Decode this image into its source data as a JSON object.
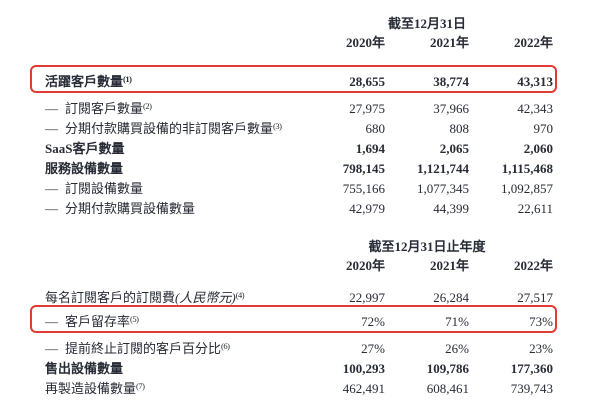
{
  "page": {
    "background": "#ffffff",
    "text_color": "#272b35",
    "highlight_color": "#e23b31"
  },
  "table1": {
    "period_header": "截至12月31日",
    "years": [
      "2020年",
      "2021年",
      "2022年"
    ],
    "rows": [
      {
        "prefix": "",
        "label": "活躍客戶數量",
        "sup": "(1)",
        "values": [
          "28,655",
          "38,774",
          "43,313"
        ]
      },
      {
        "prefix": "—",
        "label": "訂閱客戶數量",
        "sup": "(2)",
        "values": [
          "27,975",
          "37,966",
          "42,343"
        ]
      },
      {
        "prefix": "—",
        "label": "分期付款購買設備的非訂閱客戶數量",
        "sup": "(3)",
        "values": [
          "680",
          "808",
          "970"
        ]
      },
      {
        "prefix": "",
        "label": "SaaS客戶數量",
        "sup": "",
        "values": [
          "1,694",
          "2,065",
          "2,060"
        ]
      },
      {
        "prefix": "",
        "label": "服務設備數量",
        "sup": "",
        "values": [
          "798,145",
          "1,121,744",
          "1,115,468"
        ]
      },
      {
        "prefix": "—",
        "label": "訂閱設備數量",
        "sup": "",
        "values": [
          "755,166",
          "1,077,345",
          "1,092,857"
        ]
      },
      {
        "prefix": "—",
        "label": "分期付款購買設備數量",
        "sup": "",
        "values": [
          "42,979",
          "44,399",
          "22,611"
        ]
      }
    ]
  },
  "table2": {
    "period_header": "截至12月31日止年度",
    "years": [
      "2020年",
      "2021年",
      "2022年"
    ],
    "rows": [
      {
        "prefix": "",
        "label": "每名訂閱客戶的訂閱費",
        "label_paren": "(人民幣元)",
        "sup": "(4)",
        "values": [
          "22,997",
          "26,284",
          "27,517"
        ]
      },
      {
        "prefix": "—",
        "label": "客戶留存率",
        "label_paren": "",
        "sup": "(5)",
        "values": [
          "72%",
          "71%",
          "73%"
        ]
      },
      {
        "prefix": "—",
        "label": "提前終止訂閱的客戶百分比",
        "label_paren": "",
        "sup": "(6)",
        "values": [
          "27%",
          "26%",
          "23%"
        ]
      },
      {
        "prefix": "",
        "label": "售出設備數量",
        "label_paren": "",
        "sup": "",
        "values": [
          "100,293",
          "109,786",
          "177,360"
        ]
      },
      {
        "prefix": "",
        "label": "再製造設備數量",
        "label_paren": "",
        "sup": "(7)",
        "values": [
          "462,491",
          "608,461",
          "739,743"
        ]
      }
    ]
  }
}
